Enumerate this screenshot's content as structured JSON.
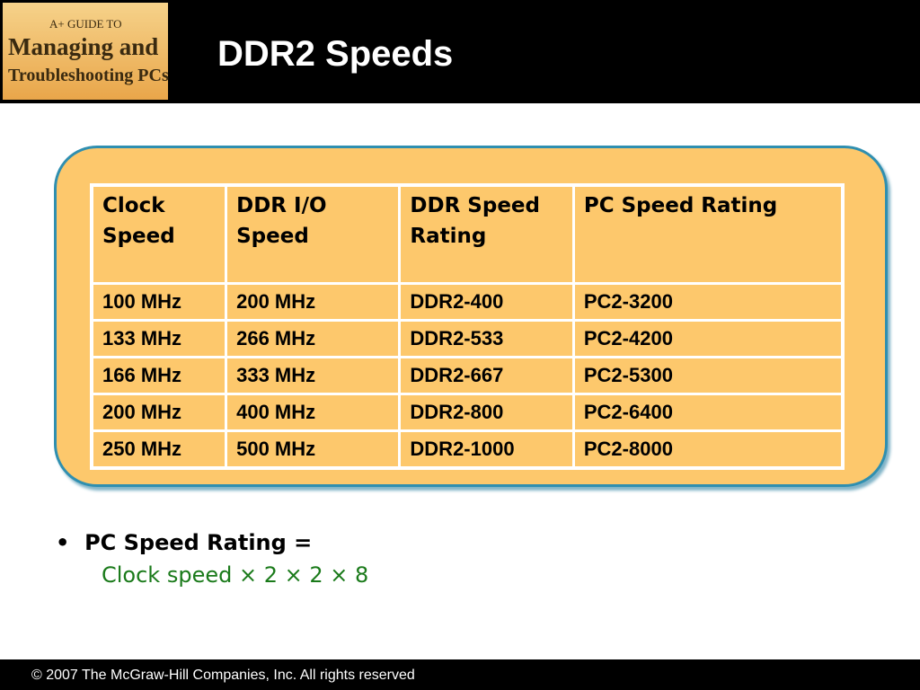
{
  "header": {
    "logo": {
      "line1": "A+ GUIDE TO",
      "line2": "Managing and",
      "line3": "Troubleshooting PCs"
    },
    "title": "DDR2 Speeds"
  },
  "table": {
    "columns": [
      "Clock Speed",
      "DDR I/O Speed",
      "DDR Speed Rating",
      "PC Speed Rating"
    ],
    "rows": [
      [
        "100 MHz",
        "200 MHz",
        "DDR2-400",
        "PC2-3200"
      ],
      [
        "133 MHz",
        "266 MHz",
        "DDR2-533",
        "PC2-4200"
      ],
      [
        "166 MHz",
        "333 MHz",
        "DDR2-667",
        "PC2-5300"
      ],
      [
        "200 MHz",
        "400 MHz",
        "DDR2-800",
        "PC2-6400"
      ],
      [
        "250 MHz",
        "500 MHz",
        "DDR2-1000",
        "PC2-8000"
      ]
    ]
  },
  "bullet": {
    "text": "PC Speed Rating =",
    "formula": "Clock speed × 2 × 2 × 8"
  },
  "footer": "© 2007 The McGraw-Hill Companies, Inc. All rights reserved"
}
